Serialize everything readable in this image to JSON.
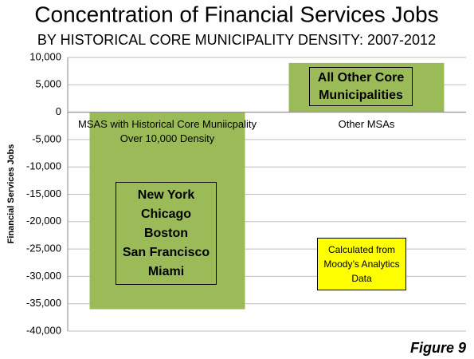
{
  "chart_data": {
    "type": "bar",
    "title": "Concentration of Financial Services Jobs",
    "subtitle": "BY HISTORICAL CORE MUNICIPALITY DENSITY: 2007-2012",
    "y_label": "Financial Services Jobs",
    "categories": [
      "MSAS with Historical Core Muniicpality Over 10,000 Density",
      "Other MSAs"
    ],
    "values": [
      -36000,
      9000
    ],
    "color": "#9bbb59",
    "ylim": [
      -40000,
      10000
    ],
    "yticks": [
      {
        "value": 10000,
        "label": "10,000"
      },
      {
        "value": 5000,
        "label": "5,000"
      },
      0,
      {
        "value": -5000,
        "label": "-5,000"
      },
      {
        "value": -10000,
        "label": "-10,000"
      },
      {
        "value": -15000,
        "label": "-15,000"
      },
      {
        "value": -20000,
        "label": "-20,000"
      },
      {
        "value": -25000,
        "label": "-25,000"
      },
      {
        "value": -30000,
        "label": "-30,000"
      },
      {
        "value": -35000,
        "label": "-35,000"
      },
      {
        "value": -40000,
        "label": "-40,000"
      }
    ],
    "grid": true,
    "annotations": [
      "New York\nChicago\nBoston\nSan Francisco\nMiami",
      "All Other Core\nMunicipalities",
      "Calculated from\nMoody’s Analytics\nData"
    ],
    "figure_label": "Figure 9"
  }
}
